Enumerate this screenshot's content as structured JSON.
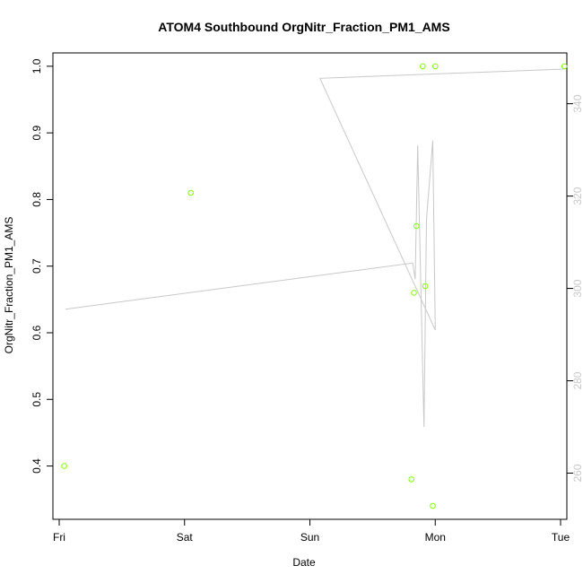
{
  "chart_data": {
    "type": "scatter",
    "title": "ATOM4 Southbound OrgNitr_Fraction_PM1_AMS",
    "xlabel": "Date",
    "ylabel": "OrgNitr_Fraction_PM1_AMS",
    "x_ticks": [
      "Fri",
      "Sat",
      "Sun",
      "Mon",
      "Tue"
    ],
    "x_tick_positions": [
      0,
      1,
      2,
      3,
      4
    ],
    "xlim": [
      -0.05,
      4.05
    ],
    "ylim": [
      0.32,
      1.02
    ],
    "y_ticks": [
      0.4,
      0.5,
      0.6,
      0.7,
      0.8,
      0.9,
      1.0
    ],
    "y_tick_labels": [
      "0.4",
      "0.5",
      "0.6",
      "0.7",
      "0.8",
      "0.9",
      "1.0"
    ],
    "y2lim": [
      250,
      351
    ],
    "y2_ticks": [
      260,
      280,
      300,
      320,
      340
    ],
    "y2_tick_labels": [
      "260",
      "280",
      "300",
      "320",
      "340"
    ],
    "grid": false,
    "series": [
      {
        "type": "scatter",
        "axis": "left",
        "color": "#80ff00",
        "points": [
          [
            0.04,
            0.4
          ],
          [
            1.05,
            0.81
          ],
          [
            2.81,
            0.38
          ],
          [
            2.83,
            0.66
          ],
          [
            2.85,
            0.76
          ],
          [
            2.9,
            1.0
          ],
          [
            2.92,
            0.67
          ],
          [
            2.98,
            0.34
          ],
          [
            3.0,
            1.0
          ],
          [
            4.03,
            1.0
          ]
        ]
      },
      {
        "type": "line",
        "axis": "right",
        "color": "#c8c8c8",
        "points": [
          [
            0.05,
            295.5
          ],
          [
            2.82,
            305.5
          ],
          [
            2.84,
            302.0
          ],
          [
            2.86,
            331.0
          ],
          [
            2.91,
            270.0
          ],
          [
            2.93,
            315.0
          ],
          [
            2.98,
            332.0
          ],
          [
            3.0,
            291.0
          ],
          [
            2.08,
            345.5
          ],
          [
            4.03,
            347.5
          ]
        ]
      }
    ]
  }
}
